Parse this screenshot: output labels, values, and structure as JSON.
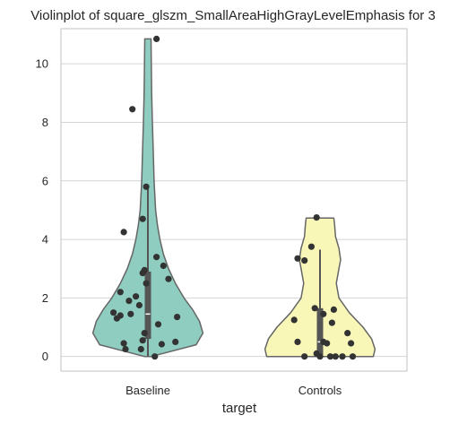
{
  "chart_data": {
    "type": "violin",
    "title": "Violinplot of square_glszm_SmallAreaHighGrayLevelEmphasis for 3",
    "xlabel": "target",
    "ylabel": "",
    "categories": [
      "Baseline",
      "Controls"
    ],
    "ylim": [
      -0.5,
      11.2
    ],
    "yticks": [
      0,
      2,
      4,
      6,
      8,
      10
    ],
    "grid": true,
    "colors": {
      "Baseline": "#8ecdc0",
      "Controls": "#f9f7b8",
      "outline": "#666666",
      "points": "#333333",
      "grid": "#d4d4d4",
      "box": "#555555",
      "median": "#ffffff"
    },
    "violins": [
      {
        "category": "Baseline",
        "profile": [
          [
            0.0,
            0.02
          ],
          [
            0.4,
            0.28
          ],
          [
            0.8,
            0.32
          ],
          [
            1.2,
            0.3
          ],
          [
            1.6,
            0.26
          ],
          [
            2.0,
            0.21
          ],
          [
            2.5,
            0.16
          ],
          [
            3.0,
            0.12
          ],
          [
            3.5,
            0.09
          ],
          [
            4.0,
            0.07
          ],
          [
            4.5,
            0.055
          ],
          [
            5.0,
            0.045
          ],
          [
            6.0,
            0.036
          ],
          [
            7.0,
            0.031
          ],
          [
            8.0,
            0.026
          ],
          [
            9.0,
            0.022
          ],
          [
            10.0,
            0.02
          ],
          [
            10.85,
            0.018
          ]
        ],
        "box": {
          "q1": 0.6,
          "median": 1.45,
          "q3": 2.9,
          "whisker_low": 0.0,
          "whisker_high": 5.8
        },
        "points": [
          [
            0.05,
            10.85
          ],
          [
            -0.09,
            8.45
          ],
          [
            -0.01,
            5.8
          ],
          [
            -0.03,
            4.7
          ],
          [
            -0.14,
            4.25
          ],
          [
            0.05,
            3.4
          ],
          [
            0.09,
            3.1
          ],
          [
            -0.02,
            2.95
          ],
          [
            -0.03,
            2.85
          ],
          [
            0.12,
            2.65
          ],
          [
            -0.01,
            2.5
          ],
          [
            -0.16,
            2.2
          ],
          [
            -0.07,
            2.05
          ],
          [
            -0.11,
            1.9
          ],
          [
            -0.05,
            1.75
          ],
          [
            -0.2,
            1.5
          ],
          [
            -0.16,
            1.4
          ],
          [
            -0.1,
            1.45
          ],
          [
            -0.18,
            1.3
          ],
          [
            0.17,
            1.35
          ],
          [
            0.06,
            1.1
          ],
          [
            -0.02,
            0.8
          ],
          [
            -0.03,
            0.55
          ],
          [
            0.16,
            0.5
          ],
          [
            -0.14,
            0.45
          ],
          [
            0.08,
            0.42
          ],
          [
            -0.13,
            0.25
          ],
          [
            -0.04,
            0.25
          ],
          [
            0.04,
            0.0
          ]
        ]
      },
      {
        "category": "Controls",
        "profile": [
          [
            0.0,
            0.31
          ],
          [
            0.25,
            0.32
          ],
          [
            0.6,
            0.3
          ],
          [
            1.0,
            0.25
          ],
          [
            1.5,
            0.17
          ],
          [
            2.0,
            0.11
          ],
          [
            2.5,
            0.095
          ],
          [
            3.0,
            0.11
          ],
          [
            3.3,
            0.12
          ],
          [
            3.7,
            0.11
          ],
          [
            4.1,
            0.09
          ],
          [
            4.5,
            0.085
          ],
          [
            4.73,
            0.08
          ]
        ],
        "box": {
          "q1": 0.05,
          "median": 0.5,
          "q3": 1.65,
          "whisker_low": 0.0,
          "whisker_high": 3.65
        },
        "points": [
          [
            -0.02,
            4.75
          ],
          [
            -0.05,
            3.75
          ],
          [
            -0.13,
            3.35
          ],
          [
            -0.09,
            3.28
          ],
          [
            -0.03,
            1.65
          ],
          [
            0.08,
            1.6
          ],
          [
            0.02,
            1.45
          ],
          [
            -0.15,
            1.25
          ],
          [
            0.07,
            1.15
          ],
          [
            0.16,
            0.8
          ],
          [
            -0.13,
            0.5
          ],
          [
            0.02,
            0.5
          ],
          [
            0.04,
            0.45
          ],
          [
            0.18,
            0.45
          ],
          [
            -0.02,
            0.1
          ],
          [
            -0.09,
            0.0
          ],
          [
            0.0,
            0.0
          ],
          [
            0.06,
            0.0
          ],
          [
            0.09,
            0.0
          ],
          [
            0.13,
            0.0
          ],
          [
            0.19,
            0.0
          ]
        ]
      }
    ]
  }
}
